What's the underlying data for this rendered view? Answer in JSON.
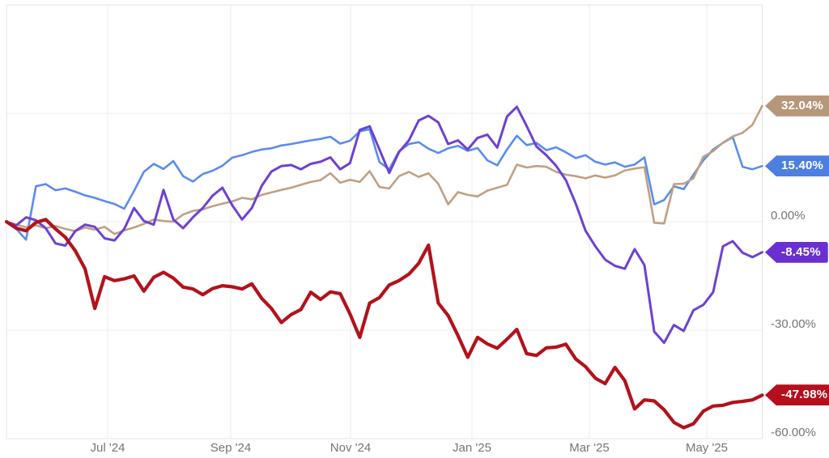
{
  "chart_data": {
    "type": "line",
    "title": "",
    "legend": "none",
    "grid": true,
    "x_axis": {
      "tick_labels": [
        "Jul '24",
        "Sep '24",
        "Nov '24",
        "Jan '25",
        "Mar '25",
        "May '25"
      ]
    },
    "y_axis": {
      "tick_labels": [
        "0.00%",
        "-30.00%",
        "-60.00%"
      ],
      "tick_values": [
        0,
        -30,
        -60
      ],
      "gridline_values": [
        30,
        0,
        -30
      ],
      "ylim": [
        -62,
        60
      ],
      "unit": "%"
    },
    "series": [
      {
        "name": "blue",
        "color": "#5b8cec",
        "label_bg": "#4c7fe0",
        "end_label": "15.40%",
        "end_value": 15.4,
        "line_width": 2.6,
        "values": [
          0,
          -2,
          -5,
          9.8,
          10.4,
          8.7,
          9.2,
          8.3,
          7.3,
          6.6,
          5.7,
          4.9,
          3.6,
          8.5,
          13.8,
          16,
          14.6,
          16.8,
          12.6,
          11.1,
          13.2,
          14.1,
          15.5,
          17.7,
          18.4,
          19.3,
          20,
          20.3,
          21.1,
          21.5,
          22,
          22.5,
          22.9,
          23.5,
          21.6,
          22.4,
          25,
          25.6,
          16.5,
          14.5,
          19.5,
          21.5,
          22,
          20.2,
          19,
          20.3,
          21,
          19.6,
          20.4,
          17,
          15.6,
          20,
          23.8,
          21.2,
          21.8,
          19.8,
          20.6,
          19.2,
          17.6,
          18.4,
          16.6,
          15.8,
          16.4,
          15.2,
          15.8,
          17.8,
          4.8,
          6,
          9.8,
          9,
          13,
          17,
          20,
          21.8,
          23.4,
          15.2,
          14.5,
          15.4
        ]
      },
      {
        "name": "tan",
        "color": "#c0a083",
        "label_bg": "#b7977a",
        "end_label": "32.04%",
        "end_value": 32.04,
        "line_width": 2.6,
        "values": [
          0,
          -0.8,
          -1.5,
          -1,
          -1.8,
          -1.2,
          -2,
          -2.6,
          -1.6,
          -2.2,
          -1.4,
          -3.4,
          -2.4,
          -1.6,
          -0.6,
          0.6,
          0.2,
          0,
          2,
          3,
          3.4,
          4.3,
          5,
          5.6,
          6.6,
          6.2,
          7.4,
          8.1,
          8.8,
          9.4,
          10.2,
          11,
          11.5,
          13.4,
          10.8,
          11.6,
          11,
          14,
          9.6,
          9.2,
          12.6,
          13.8,
          12.4,
          13.4,
          10.5,
          4.8,
          8.2,
          7.4,
          7,
          8.6,
          9.4,
          10.2,
          15.8,
          15,
          15.4,
          15.2,
          13.8,
          13,
          12.6,
          12,
          12.8,
          12.2,
          12.8,
          14.2,
          14.7,
          15.1,
          -0.3,
          -0.5,
          10.4,
          10.5,
          12,
          18,
          19.5,
          21.9,
          23.6,
          24.6,
          26.8,
          32.04
        ]
      },
      {
        "name": "purple",
        "color": "#6d41d3",
        "label_bg": "#6a2fd0",
        "end_label": "-8.45%",
        "end_value": -8.45,
        "line_width": 3,
        "values": [
          0,
          -1,
          1.2,
          0.4,
          -1.8,
          -6,
          -6.6,
          -2.6,
          -0.8,
          -1.4,
          -4.6,
          -5.2,
          -2,
          3.8,
          0.2,
          -0.8,
          8.8,
          0.6,
          -1.8,
          1.2,
          3.8,
          7.2,
          9.4,
          4.6,
          0.6,
          3.8,
          9.9,
          13.9,
          15.4,
          15.7,
          14.5,
          16,
          16.6,
          17.8,
          14.5,
          16.2,
          25.4,
          26.4,
          20,
          13.5,
          19.3,
          22.5,
          28,
          29.3,
          27.5,
          21.5,
          22.5,
          20,
          23.2,
          24.1,
          20.5,
          29.1,
          31.8,
          26.5,
          20.8,
          18.4,
          15.5,
          11.5,
          5,
          -2.5,
          -6.8,
          -10.5,
          -12.2,
          -13,
          -7.6,
          -12,
          -30.4,
          -33.5,
          -28.6,
          -30.2,
          -24.5,
          -23,
          -19.5,
          -6.8,
          -5.4,
          -8.6,
          -9.8,
          -8.45
        ]
      },
      {
        "name": "red",
        "color": "#b2121b",
        "label_bg": "#b50f1d",
        "end_label": "-47.98%",
        "end_value": -47.98,
        "line_width": 4.2,
        "values": [
          0,
          -1.8,
          -2.5,
          -0.2,
          0.6,
          -2,
          -4.3,
          -8,
          -13,
          -24,
          -15.2,
          -16.3,
          -15.8,
          -15,
          -19.2,
          -15.4,
          -14,
          -15.6,
          -18.1,
          -18.6,
          -20.2,
          -18.5,
          -17.7,
          -18,
          -18.6,
          -17.2,
          -21.2,
          -24,
          -27.9,
          -25.7,
          -24.3,
          -19.5,
          -21.5,
          -19.4,
          -19.9,
          -25.5,
          -32,
          -22.5,
          -21,
          -17.5,
          -16.3,
          -14.5,
          -11.5,
          -6.5,
          -22.5,
          -26,
          -31.5,
          -37.5,
          -32,
          -33.8,
          -35,
          -32.5,
          -29.8,
          -36.5,
          -37,
          -34.9,
          -34.7,
          -33.9,
          -38,
          -40.1,
          -43.3,
          -44.8,
          -40.3,
          -44,
          -51.8,
          -49.3,
          -49.6,
          -52,
          -55.5,
          -57,
          -55.9,
          -52.4,
          -51,
          -50.8,
          -50,
          -49.7,
          -49.3,
          -47.98
        ]
      }
    ]
  }
}
